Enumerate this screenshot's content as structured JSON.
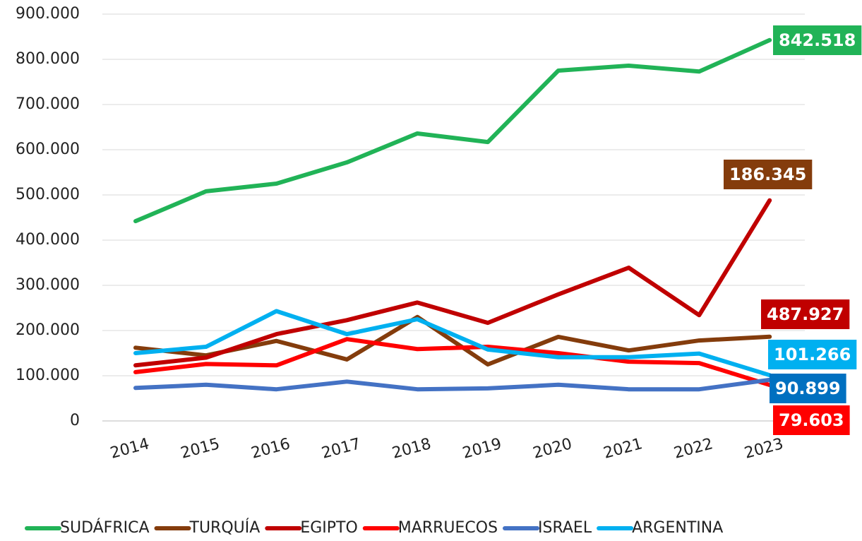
{
  "chart_data": {
    "type": "line",
    "categories": [
      "2014",
      "2015",
      "2016",
      "2017",
      "2018",
      "2019",
      "2020",
      "2021",
      "2022",
      "2023"
    ],
    "ylim": [
      0,
      900000
    ],
    "yticks": [
      0,
      {
        "value": 100000,
        "label": "100.000"
      },
      {
        "value": 200000,
        "label": "200.000"
      },
      {
        "value": 300000,
        "label": "300.000"
      },
      {
        "value": 400000,
        "label": "400.000"
      },
      {
        "value": 500000,
        "label": "500.000"
      },
      {
        "value": 600000,
        "label": "600.000"
      },
      {
        "value": 700000,
        "label": "700.000"
      },
      {
        "value": 800000,
        "label": "800.000"
      },
      {
        "value": 900000,
        "label": "900.000"
      }
    ],
    "grid": true,
    "legend": "bottom",
    "series": [
      {
        "name": "SUDÁFRICA",
        "color": "#21b357",
        "values": [
          442000,
          508000,
          525000,
          572000,
          636000,
          617000,
          775000,
          786000,
          773000,
          842518
        ],
        "value_labels": [
          null,
          null,
          null,
          null,
          null,
          null,
          null,
          null,
          null,
          "842.518"
        ]
      },
      {
        "name": "TURQUÍA",
        "color": "#843c0c",
        "values": [
          162000,
          145000,
          177000,
          136000,
          230000,
          125000,
          186000,
          156000,
          178000,
          186345
        ],
        "value_labels": [
          null,
          null,
          null,
          null,
          null,
          null,
          null,
          null,
          null,
          "186.345"
        ]
      },
      {
        "name": "EGIPTO",
        "color": "#c00000",
        "values": [
          123000,
          140000,
          192000,
          223000,
          262000,
          217000,
          280000,
          339000,
          234000,
          487927
        ],
        "value_labels": [
          null,
          null,
          null,
          null,
          null,
          null,
          null,
          null,
          null,
          "487.927"
        ]
      },
      {
        "name": "MARRUECOS",
        "color": "#ff0000",
        "values": [
          108000,
          126000,
          123000,
          181000,
          159000,
          164000,
          150000,
          131000,
          128000,
          79603
        ],
        "value_labels": [
          null,
          null,
          null,
          null,
          null,
          null,
          null,
          null,
          null,
          "79.603"
        ]
      },
      {
        "name": "ISRAEL",
        "color": "#4472c4",
        "values": [
          73000,
          80000,
          70000,
          87000,
          70000,
          72000,
          80000,
          70000,
          70000,
          90899
        ],
        "value_labels": [
          null,
          null,
          null,
          null,
          null,
          null,
          null,
          null,
          null,
          "90.899"
        ]
      },
      {
        "name": "ARGENTINA",
        "color": "#00b0f0",
        "values": [
          150000,
          164000,
          243000,
          192000,
          225000,
          158000,
          141000,
          141000,
          149000,
          101266
        ],
        "value_labels": [
          null,
          null,
          null,
          null,
          null,
          null,
          null,
          null,
          null,
          "101.266"
        ]
      }
    ]
  }
}
